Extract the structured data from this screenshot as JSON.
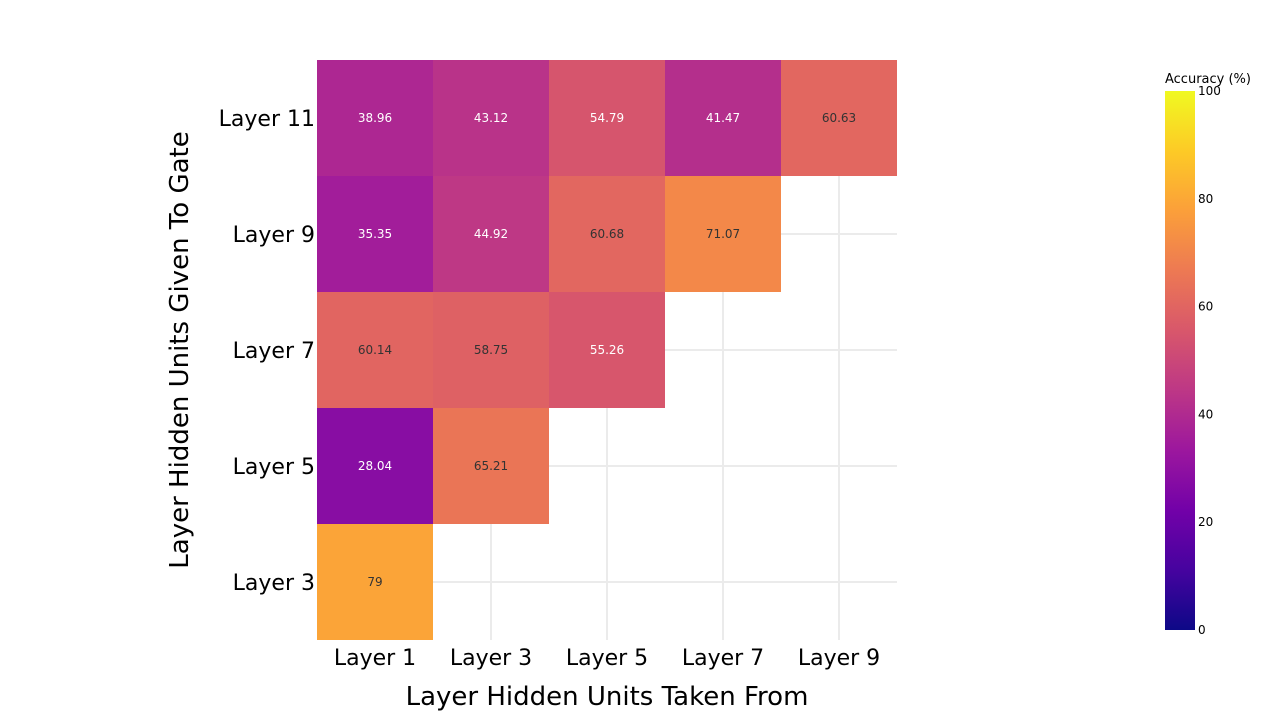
{
  "chart_data": {
    "type": "heatmap",
    "x_categories": [
      "Layer 1",
      "Layer 3",
      "Layer 5",
      "Layer 7",
      "Layer 9"
    ],
    "y_categories": [
      "Layer 3",
      "Layer 5",
      "Layer 7",
      "Layer 9",
      "Layer 11"
    ],
    "values": [
      [
        79,
        null,
        null,
        null,
        null
      ],
      [
        28.04,
        65.21,
        null,
        null,
        null
      ],
      [
        60.14,
        58.75,
        55.26,
        null,
        null
      ],
      [
        35.35,
        44.92,
        60.68,
        71.07,
        null
      ],
      [
        38.96,
        43.12,
        54.79,
        41.47,
        60.63
      ]
    ],
    "value_labels": [
      [
        "79",
        null,
        null,
        null,
        null
      ],
      [
        "28.04",
        "65.21",
        null,
        null,
        null
      ],
      [
        "60.14",
        "58.75",
        "55.26",
        null,
        null
      ],
      [
        "35.35",
        "44.92",
        "60.68",
        "71.07",
        null
      ],
      [
        "38.96",
        "43.12",
        "54.79",
        "41.47",
        "60.63"
      ]
    ],
    "xlabel": "Layer Hidden Units Taken From",
    "ylabel": "Layer Hidden Units Given To Gate",
    "colorscale": "plasma",
    "zlim": [
      0,
      100
    ],
    "colorbar": {
      "title": "Accuracy (%)",
      "ticks": [
        0,
        20,
        40,
        60,
        80,
        100
      ]
    },
    "grid": true
  }
}
